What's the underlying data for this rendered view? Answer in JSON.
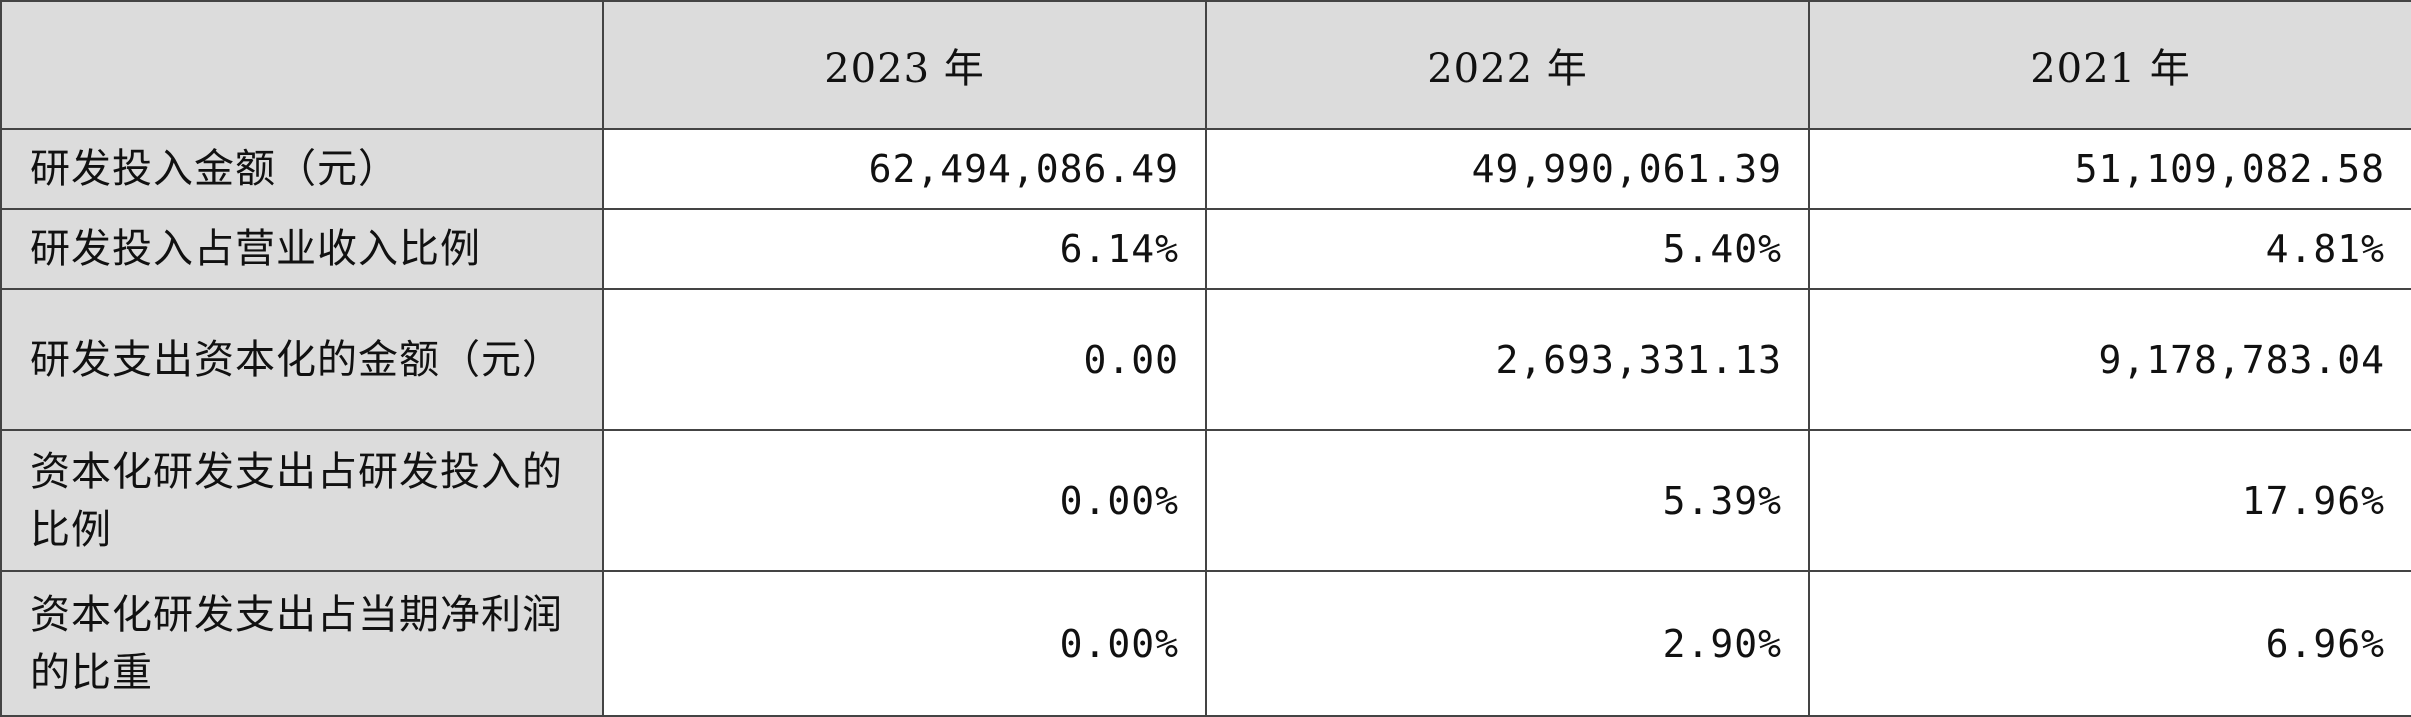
{
  "header": {
    "years": [
      "2023 年",
      "2022 年",
      "2021 年"
    ]
  },
  "rows": [
    {
      "label": "研发投入金额（元）",
      "values": [
        "62,494,086.49",
        "49,990,061.39",
        "51,109,082.58"
      ]
    },
    {
      "label": "研发投入占营业收入比例",
      "values": [
        "6.14%",
        "5.40%",
        "4.81%"
      ]
    },
    {
      "label": "研发支出资本化的金额（元）",
      "values": [
        "0.00",
        "2,693,331.13",
        "9,178,783.04"
      ]
    },
    {
      "label": "资本化研发支出占研发投入的比例",
      "values": [
        "0.00%",
        "5.39%",
        "17.96%"
      ]
    },
    {
      "label": "资本化研发支出占当期净利润的比重",
      "values": [
        "0.00%",
        "2.90%",
        "6.96%"
      ]
    }
  ],
  "colors": {
    "header_bg": "#dcdcdc",
    "label_bg": "#dcdcdc",
    "cell_bg": "#ffffff",
    "border": "#444444",
    "text": "#111111"
  }
}
